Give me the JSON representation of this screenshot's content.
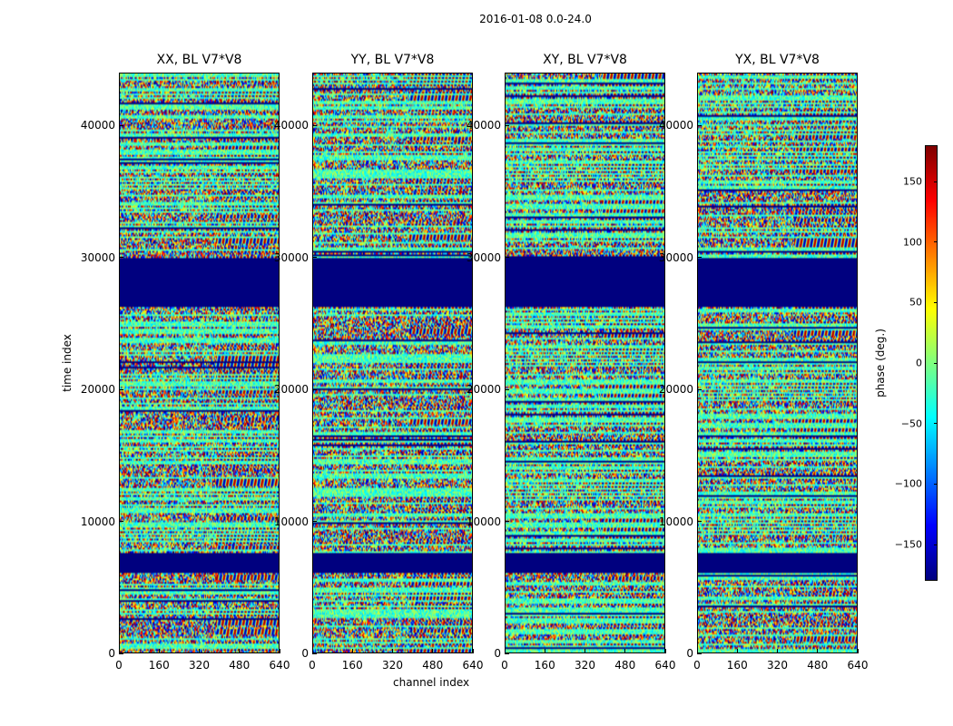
{
  "figure": {
    "title": "2016-01-08 0.0-24.0",
    "xlabel": "channel index",
    "ylabel": "time index"
  },
  "chart_data": [
    {
      "type": "heatmap",
      "title": "XX, BL V7*V8",
      "xlim": [
        0,
        640
      ],
      "ylim": [
        0,
        44000
      ],
      "xticks": [
        "0",
        "160",
        "320",
        "480",
        "640"
      ],
      "yticks": [
        "0",
        "10000",
        "20000",
        "30000",
        "40000"
      ],
      "value_range": [
        -180,
        180
      ],
      "blank_bands": [
        [
          6000,
          7500
        ],
        [
          26300,
          30000
        ]
      ]
    },
    {
      "type": "heatmap",
      "title": "YY, BL V7*V8",
      "xlim": [
        0,
        640
      ],
      "ylim": [
        0,
        44000
      ],
      "xticks": [
        "0",
        "160",
        "320",
        "480",
        "640"
      ],
      "yticks": [
        "0",
        "10000",
        "20000",
        "30000",
        "40000"
      ],
      "value_range": [
        -180,
        180
      ],
      "blank_bands": [
        [
          6000,
          7500
        ],
        [
          26300,
          30000
        ]
      ]
    },
    {
      "type": "heatmap",
      "title": "XY, BL V7*V8",
      "xlim": [
        0,
        640
      ],
      "ylim": [
        0,
        44000
      ],
      "xticks": [
        "0",
        "160",
        "320",
        "480",
        "640"
      ],
      "yticks": [
        "0",
        "10000",
        "20000",
        "30000",
        "40000"
      ],
      "value_range": [
        -180,
        180
      ],
      "blank_bands": [
        [
          6000,
          7500
        ],
        [
          26300,
          30000
        ]
      ]
    },
    {
      "type": "heatmap",
      "title": "YX, BL V7*V8",
      "xlim": [
        0,
        640
      ],
      "ylim": [
        0,
        44000
      ],
      "xticks": [
        "0",
        "160",
        "320",
        "480",
        "640"
      ],
      "yticks": [
        "0",
        "10000",
        "20000",
        "30000",
        "40000"
      ],
      "value_range": [
        -180,
        180
      ],
      "blank_bands": [
        [
          6000,
          7500
        ],
        [
          26300,
          30000
        ]
      ]
    }
  ],
  "colorbar": {
    "label": "phase (deg.)",
    "range": [
      -180,
      180
    ],
    "ticks": [
      "150",
      "100",
      "50",
      "0",
      "−50",
      "−100",
      "−150"
    ],
    "tick_values": [
      150,
      100,
      50,
      0,
      -50,
      -100,
      -150
    ],
    "colormap": "jet",
    "blank_color": "#00007f"
  }
}
